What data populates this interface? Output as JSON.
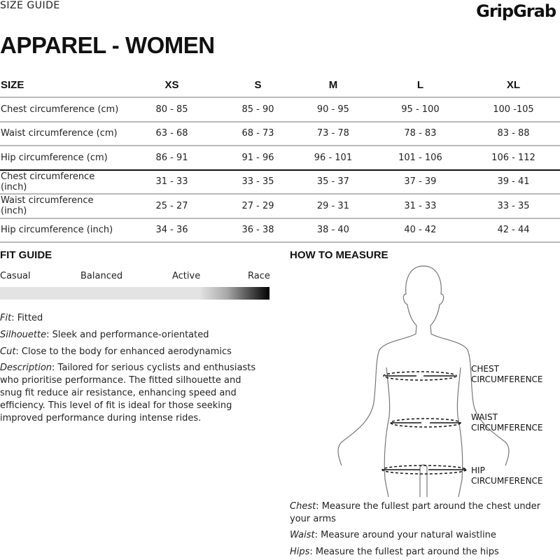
{
  "header": {
    "label": "SIZE GUIDE",
    "logo": "GripGrab",
    "title": "APPAREL - WOMEN"
  },
  "table": {
    "headers": [
      "SIZE",
      "XS",
      "S",
      "M",
      "L",
      "XL"
    ],
    "rows": [
      {
        "label": "Chest circumference (cm)",
        "values": [
          "80 - 85",
          "85 - 90",
          "90 - 95",
          "95 - 100",
          "100 -105"
        ]
      },
      {
        "label": "Waist circumference (cm)",
        "values": [
          "63 - 68",
          "68 - 73",
          "73 - 78",
          "78 - 83",
          "83 - 88"
        ]
      },
      {
        "label": "Hip circumference (cm)",
        "values": [
          "86 - 91",
          "91 - 96",
          "96 - 101",
          "101 - 106",
          "106 - 112"
        ]
      },
      {
        "label": "Chest circumference (inch)",
        "values": [
          "31 - 33",
          "33 - 35",
          "35 - 37",
          "37 - 39",
          "39 - 41"
        ]
      },
      {
        "label": "Waist circumference (inch)",
        "values": [
          "25 - 27",
          "27 - 29",
          "29 - 31",
          "31 - 33",
          "33 - 35"
        ]
      },
      {
        "label": "Hip circumference (inch)",
        "values": [
          "34 - 36",
          "36 - 38",
          "38 - 40",
          "40 - 42",
          "42 - 44"
        ]
      }
    ]
  },
  "fit_guide": {
    "title": "FIT GUIDE",
    "scale": [
      "Casual",
      "Balanced",
      "Active",
      "Race"
    ],
    "level": "Race",
    "fit": {
      "key": "Fit",
      "value": ": Fitted"
    },
    "silhouette": {
      "key": "Silhouette",
      "value": ": Sleek and performance-orientated"
    },
    "cut": {
      "key": "Cut",
      "value": ": Close to the body for enhanced aerodynamics"
    },
    "description": {
      "key": "Description",
      "value": ": Tailored for serious cyclists and enthusiasts who prioritise performance. The fitted silhouette and snug fit reduce air resistance, enhancing speed and efficiency. This level of fit is ideal for those seeking improved performance during intense rides."
    }
  },
  "how_to_measure": {
    "title": "HOW TO MEASURE",
    "labels": {
      "chest": [
        "CHEST",
        "CIRCUMFERENCE"
      ],
      "waist": [
        "WAIST",
        "CIRCUMFERENCE"
      ],
      "hip": [
        "HIP",
        "CIRCUMFERENCE"
      ]
    },
    "chest": {
      "key": "Chest",
      "value": ": Measure the fullest part around the chest under your arms"
    },
    "waist": {
      "key": "Waist",
      "value": ": Measure around your natural waistline"
    },
    "hips": {
      "key": "Hips",
      "value": ": Measure the fullest part around the hips"
    }
  }
}
